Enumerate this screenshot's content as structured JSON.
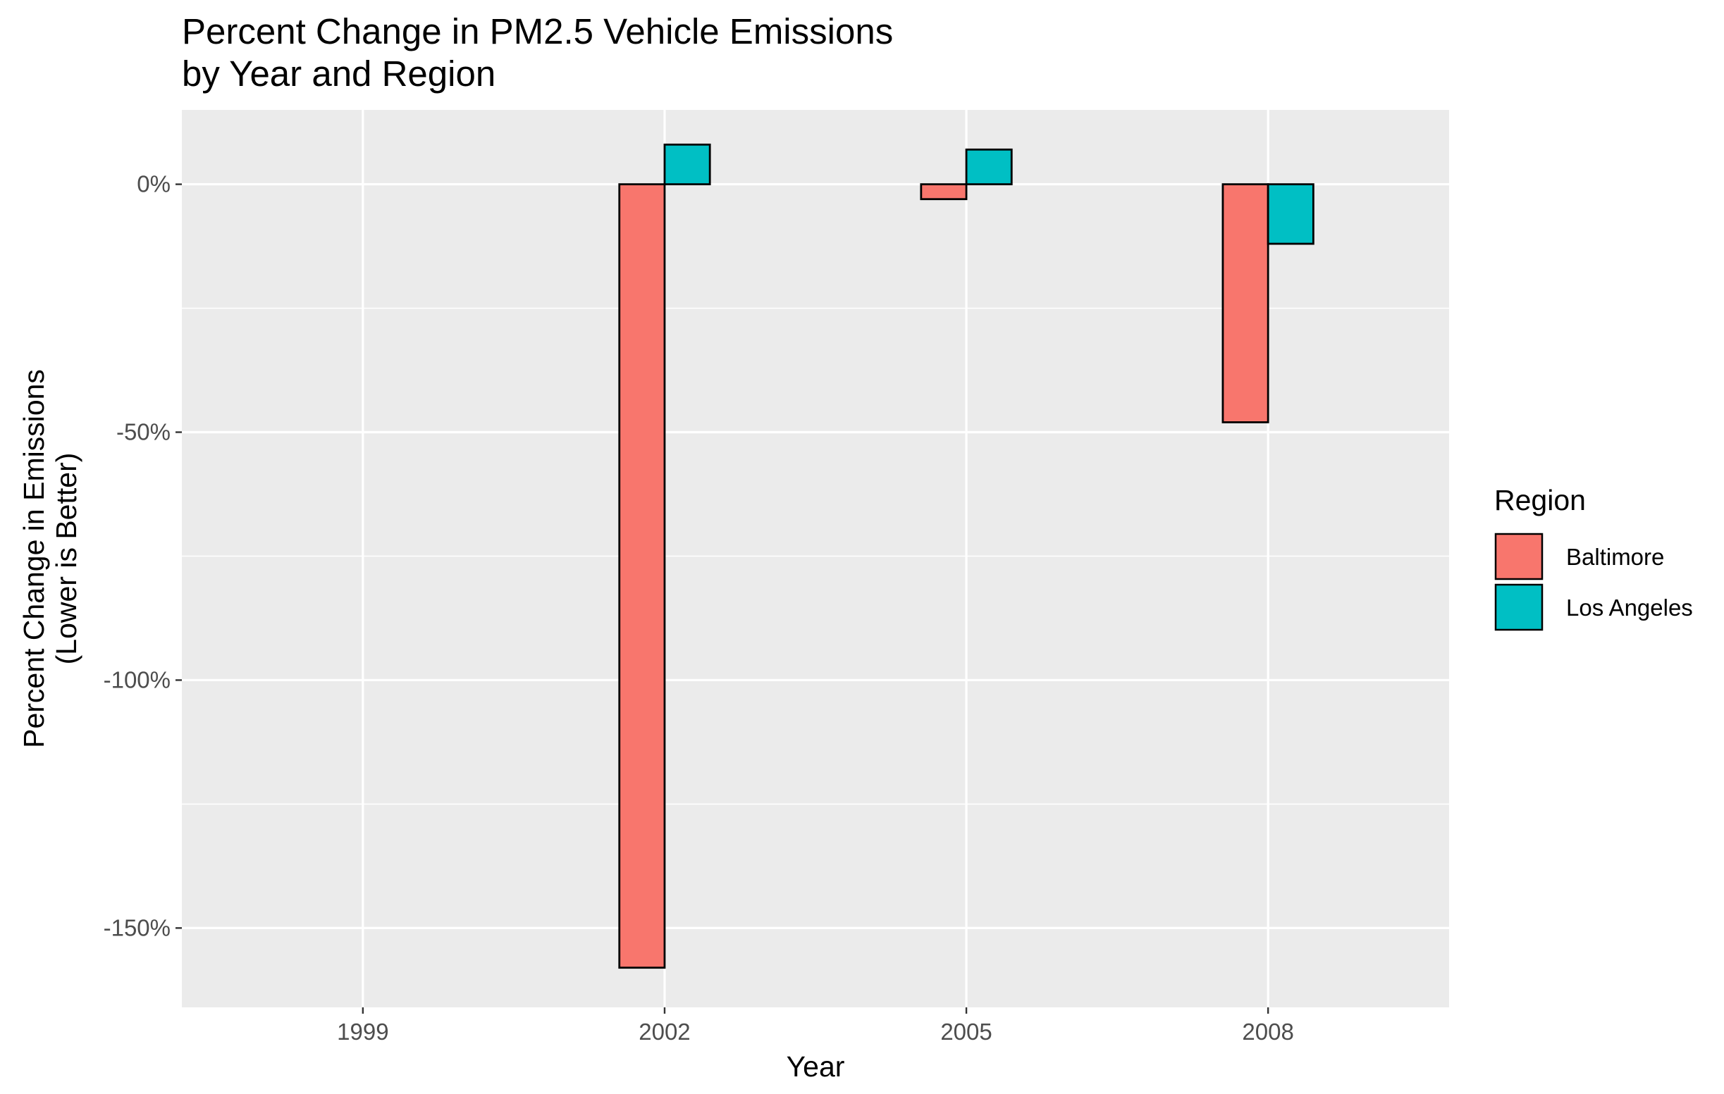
{
  "chart_data": {
    "type": "bar",
    "title": [
      "Percent Change in PM2.5 Vehicle Emissions",
      "by Year and Region"
    ],
    "xlabel": "Year",
    "ylabel": [
      "Percent Change in Emissions",
      "(Lower is Better)"
    ],
    "categories": [
      "1999",
      "2002",
      "2005",
      "2008"
    ],
    "series": [
      {
        "name": "Baltimore",
        "color": "#F8766D",
        "values": [
          0,
          -158,
          -3,
          -48
        ]
      },
      {
        "name": "Los Angeles",
        "color": "#00BFC4",
        "values": [
          0,
          8,
          7,
          -12
        ]
      }
    ],
    "ylim": [
      -166,
      15
    ],
    "yticks": [
      0,
      -50,
      -100,
      -150
    ],
    "ytick_labels": [
      "0%",
      "-50%",
      "-100%",
      "-150%"
    ],
    "legend": {
      "title": "Region",
      "position": "right"
    },
    "grid": true,
    "panel_background": "#EBEBEB",
    "bar_outline": "#000000"
  }
}
